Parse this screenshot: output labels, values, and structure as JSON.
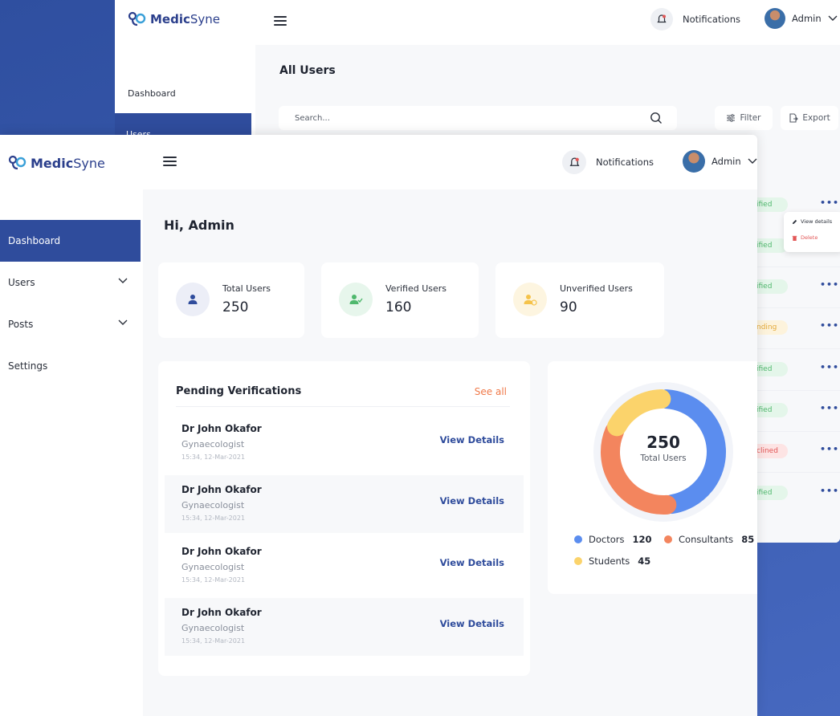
{
  "back_window": {
    "brand": {
      "name_bold": "Medic",
      "name_light": "Syne"
    },
    "header": {
      "notifications_label": "Notifications",
      "admin_label": "Admin"
    },
    "sidebar": {
      "dashboard_label": "Dashboard",
      "users_label": "Users"
    },
    "page_title": "All Users",
    "search": {
      "placeholder": "Search..."
    },
    "toolbar": {
      "filter_label": "Filter",
      "export_label": "Export"
    },
    "status_pills": [
      {
        "text": "ified",
        "kind": "verified"
      },
      {
        "text": "ified",
        "kind": "verified"
      },
      {
        "text": "ified",
        "kind": "verified"
      },
      {
        "text": "nding",
        "kind": "pending"
      },
      {
        "text": "ified",
        "kind": "verified"
      },
      {
        "text": "ified",
        "kind": "verified"
      },
      {
        "text": "clined",
        "kind": "declined"
      },
      {
        "text": "ified",
        "kind": "verified"
      }
    ],
    "row_actions_label": "•••",
    "context_menu": {
      "view_details": "View details",
      "delete": "Delete"
    }
  },
  "front_window": {
    "brand": {
      "name_bold": "Medic",
      "name_light": "Syne"
    },
    "header": {
      "notifications_label": "Notifications",
      "admin_label": "Admin"
    },
    "sidebar": {
      "items": [
        {
          "label": "Dashboard",
          "active": true,
          "has_chevron": false
        },
        {
          "label": "Users",
          "active": false,
          "has_chevron": true
        },
        {
          "label": "Posts",
          "active": false,
          "has_chevron": true
        },
        {
          "label": "Settings",
          "active": false,
          "has_chevron": false
        }
      ]
    },
    "greeting": "Hi, Admin",
    "stats": [
      {
        "label": "Total Users",
        "value": "250",
        "icon": "user-icon",
        "color": "#2f4c9c",
        "bg": "#eceef7"
      },
      {
        "label": "Verified Users",
        "value": "160",
        "icon": "user-check-icon",
        "color": "#4fb86d",
        "bg": "#e7f6ec"
      },
      {
        "label": "Unverified Users",
        "value": "90",
        "icon": "user-clock-icon",
        "color": "#f5c34a",
        "bg": "#fdf5e0"
      }
    ],
    "pending": {
      "title": "Pending Verifications",
      "see_all": "See all",
      "items": [
        {
          "name": "Dr John Okafor",
          "role": "Gynaecologist",
          "time": "15:34, 12-Mar-2021",
          "action": "View Details"
        },
        {
          "name": "Dr John Okafor",
          "role": "Gynaecologist",
          "time": "15:34, 12-Mar-2021",
          "action": "View Details"
        },
        {
          "name": "Dr John Okafor",
          "role": "Gynaecologist",
          "time": "15:34, 12-Mar-2021",
          "action": "View Details"
        },
        {
          "name": "Dr John Okafor",
          "role": "Gynaecologist",
          "time": "15:34, 12-Mar-2021",
          "action": "View Details"
        }
      ]
    },
    "donut": {
      "center_value": "250",
      "center_label": "Total Users"
    }
  },
  "chart_data": {
    "type": "pie",
    "title": "",
    "total": 250,
    "series": [
      {
        "name": "Doctors",
        "value": 120,
        "color": "#5b8def"
      },
      {
        "name": "Consultants",
        "value": 85,
        "color": "#f3855e"
      },
      {
        "name": "Students",
        "value": 45,
        "color": "#fbd36b"
      }
    ]
  }
}
